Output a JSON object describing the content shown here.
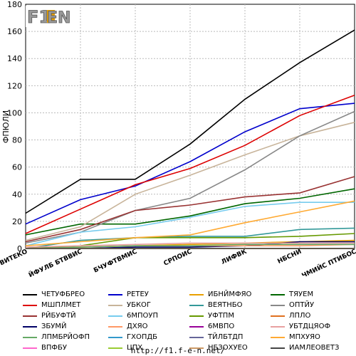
{
  "footer": {
    "url": "http://f1.f-e-n.net/"
  },
  "logo": {
    "text": "F1EN"
  },
  "chart_data": {
    "type": "line",
    "ylabel": "ФПЮЛИ",
    "ylim": [
      0,
      180
    ],
    "yticks": [
      0,
      20,
      40,
      60,
      80,
      100,
      120,
      140,
      160,
      180
    ],
    "categories": [
      "БВИТЕКО",
      "ЙФУЛБ БТВВИС",
      "БЧУФТВМИС",
      "СРПОИС",
      "ЛИФВК",
      "НБСНИ",
      "ЧМИЙС ПТИБОС"
    ],
    "grid": true,
    "series": [
      {
        "name": "ЧЕТУФБРЕО",
        "color": "#000000",
        "values": [
          26,
          51,
          51,
          77,
          110,
          137,
          161
        ]
      },
      {
        "name": "РЕТЕУ",
        "color": "#0000cc",
        "values": [
          18,
          36,
          46,
          64,
          86,
          103,
          107
        ]
      },
      {
        "name": "ИБНЙМФЯО",
        "color": "#e8a000",
        "values": [
          0,
          1,
          2,
          3,
          4,
          5,
          6
        ]
      },
      {
        "name": "ТЯУЕМ",
        "color": "#006600",
        "values": [
          10,
          18,
          18,
          24,
          33,
          37,
          44
        ]
      },
      {
        "name": "МШПЛМЕТ",
        "color": "#dd0000",
        "values": [
          11,
          29,
          47,
          59,
          76,
          98,
          113
        ]
      },
      {
        "name": "УБКОГ",
        "color": "#c8b49a",
        "values": [
          6,
          16,
          40,
          54,
          69,
          83,
          93
        ]
      },
      {
        "name": "ВЕЯТНБО",
        "color": "#339999",
        "values": [
          0,
          6,
          8,
          9,
          9,
          14,
          15
        ]
      },
      {
        "name": "ОПТЙУ",
        "color": "#888888",
        "values": [
          4,
          12,
          28,
          37,
          58,
          83,
          101
        ]
      },
      {
        "name": "РЙБУФТЙ",
        "color": "#993333",
        "values": [
          5,
          14,
          28,
          32,
          38,
          41,
          53
        ]
      },
      {
        "name": "6МПОУП",
        "color": "#77ccee",
        "values": [
          2,
          12,
          16,
          23,
          31,
          34,
          34
        ]
      },
      {
        "name": "УФТПМ",
        "color": "#669900",
        "values": [
          0,
          2,
          8,
          8,
          8,
          9,
          11
        ]
      },
      {
        "name": "ЛПЛО",
        "color": "#e07020",
        "values": [
          0,
          0,
          0,
          0,
          0,
          0,
          0
        ]
      },
      {
        "name": "ЗБУМЙ",
        "color": "#000066",
        "values": [
          0,
          0,
          1,
          1,
          2,
          5,
          5
        ]
      },
      {
        "name": "ДХЯО",
        "color": "#ff9966",
        "values": [
          0,
          1,
          2,
          2,
          2,
          2,
          3
        ]
      },
      {
        "name": "6МВПО",
        "color": "#990099",
        "values": [
          0,
          0,
          0,
          0,
          0,
          0,
          0
        ]
      },
      {
        "name": "УБТДЦЯОФ",
        "color": "#e8a0a0",
        "values": [
          1,
          2,
          3,
          4,
          4,
          4,
          4
        ]
      },
      {
        "name": "ЛПМБРЙОФП",
        "color": "#66aa66",
        "values": [
          0,
          1,
          2,
          2,
          3,
          3,
          3
        ]
      },
      {
        "name": "ГХОПДБ",
        "color": "#3399cc",
        "values": [
          0,
          0,
          0,
          0,
          0,
          0,
          0
        ]
      },
      {
        "name": "ТЙЛБТДП",
        "color": "#666699",
        "values": [
          0,
          0,
          0,
          0,
          0,
          0,
          0
        ]
      },
      {
        "name": "МПХУЯО",
        "color": "#ffaa33",
        "values": [
          2,
          5,
          8,
          10,
          19,
          27,
          35
        ]
      },
      {
        "name": "ВПФБУ",
        "color": "#ff66cc",
        "values": [
          0,
          0,
          0,
          0,
          0,
          0,
          0
        ]
      },
      {
        "name": "ЦПХ",
        "color": "#99cc33",
        "values": [
          0,
          0,
          0,
          0,
          0,
          0,
          0
        ]
      },
      {
        "name": "НБЗОХУЕО",
        "color": "#cc9966",
        "values": [
          0,
          0,
          0,
          0,
          0,
          0,
          0
        ]
      },
      {
        "name": "ИАМЛЕОВЕТЗ",
        "color": "#444444",
        "values": [
          0,
          0,
          0,
          0,
          0,
          0,
          0
        ]
      }
    ]
  }
}
